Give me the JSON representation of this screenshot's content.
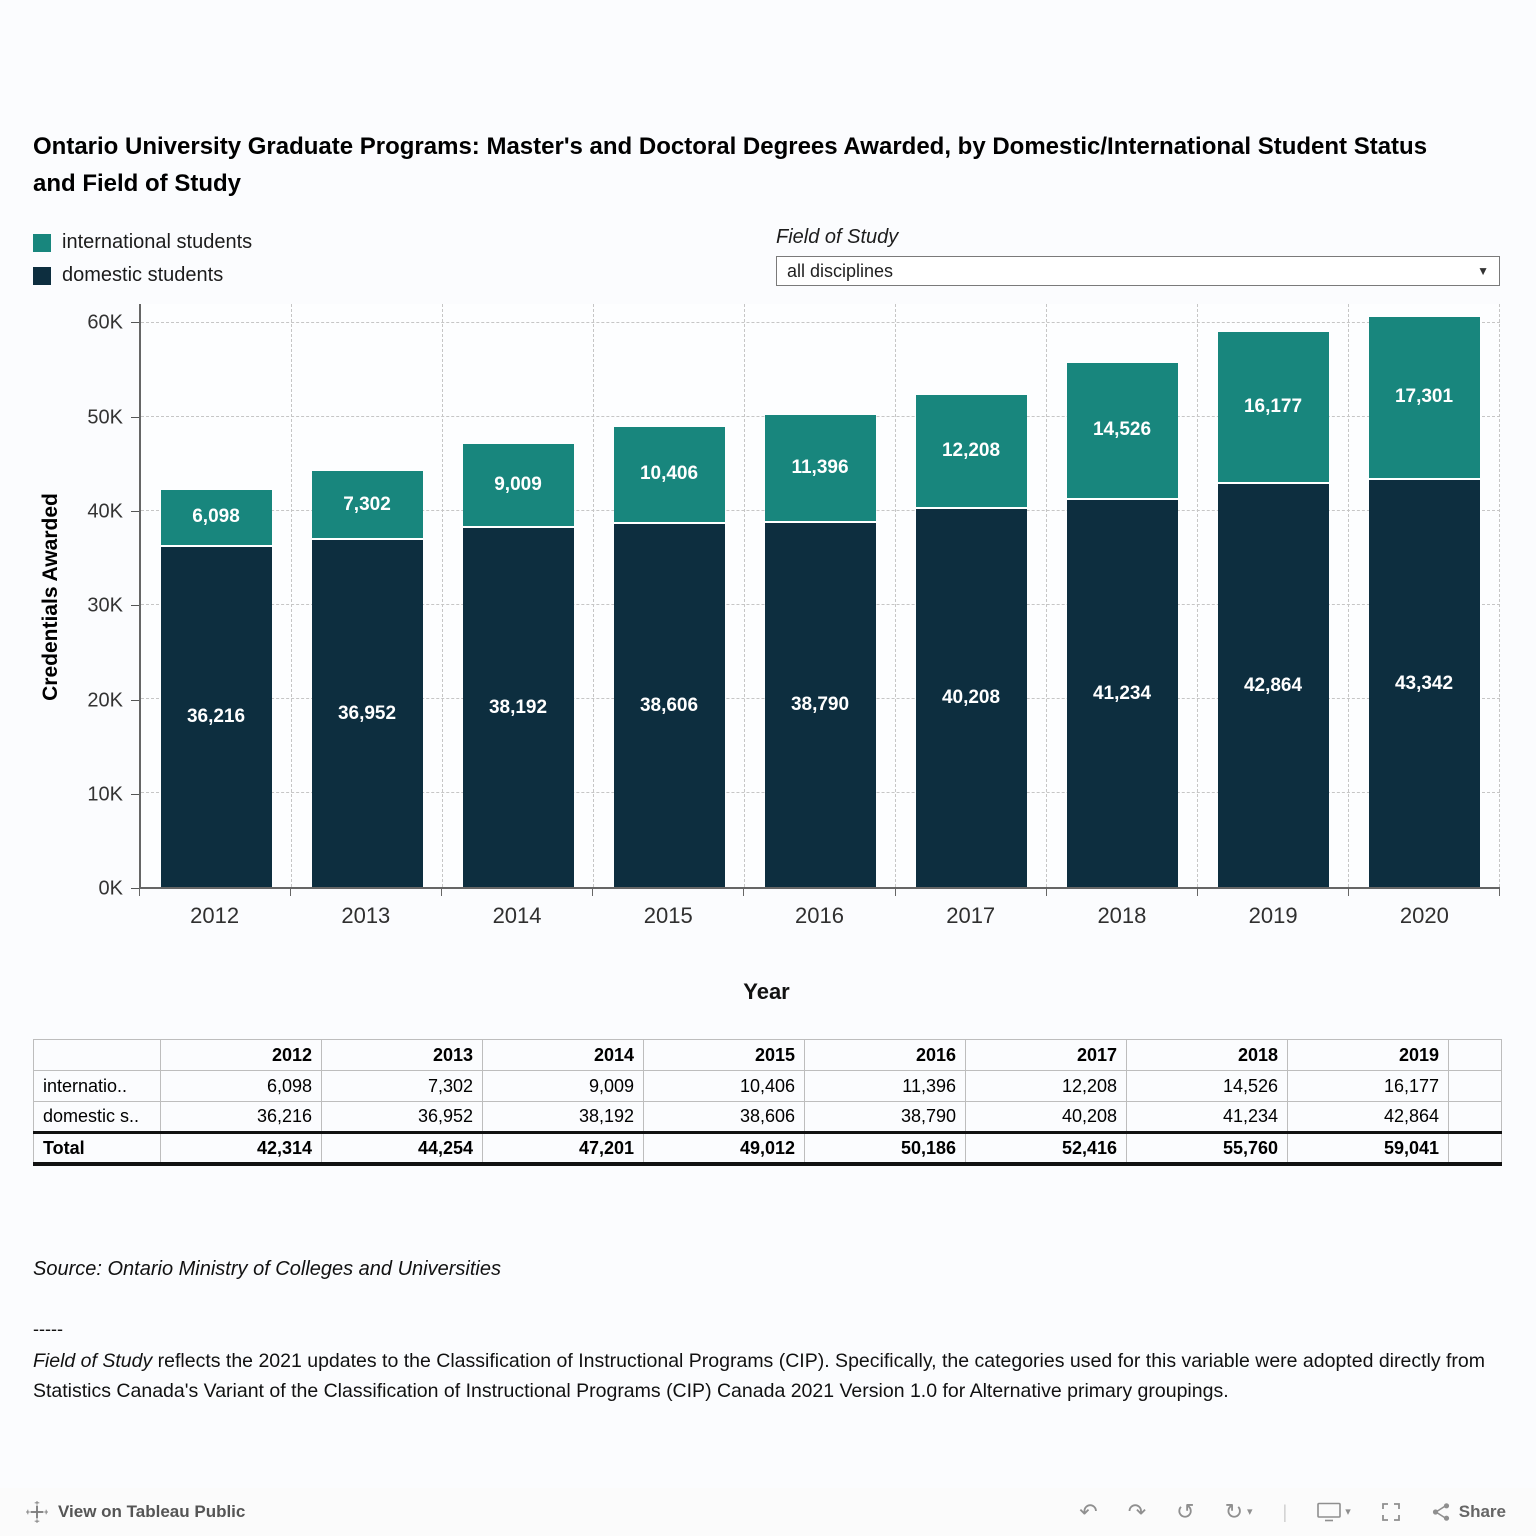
{
  "title": "Ontario University Graduate Programs: Master's and Doctoral Degrees Awarded, by Domestic/International Student Status and Field of Study",
  "legend": {
    "items": [
      {
        "label": "international students",
        "color": "#18867d"
      },
      {
        "label": "domestic students",
        "color": "#0d2e3f"
      }
    ]
  },
  "filter": {
    "label": "Field of Study",
    "value": "all disciplines",
    "caret": "▼"
  },
  "chart_data": {
    "type": "bar",
    "stacked": true,
    "title": "",
    "xlabel": "Year",
    "ylabel": "Credentials Awarded",
    "ylim": [
      0,
      62000
    ],
    "grid": "dashed horizontal and vertical",
    "legend_position": "top-left",
    "categories": [
      "2012",
      "2013",
      "2014",
      "2015",
      "2016",
      "2017",
      "2018",
      "2019",
      "2020"
    ],
    "yticks": [
      "0K",
      "10K",
      "20K",
      "30K",
      "40K",
      "50K",
      "60K"
    ],
    "ytick_values": [
      0,
      10000,
      20000,
      30000,
      40000,
      50000,
      60000
    ],
    "series": [
      {
        "name": "international students",
        "color": "#18867d",
        "values": [
          6098,
          7302,
          9009,
          10406,
          11396,
          12208,
          14526,
          16177,
          17301
        ],
        "value_labels": [
          "6,098",
          "7,302",
          "9,009",
          "10,406",
          "11,396",
          "12,208",
          "14,526",
          "16,177",
          "17,301"
        ]
      },
      {
        "name": "domestic students",
        "color": "#0d2e3f",
        "values": [
          36216,
          36952,
          38192,
          38606,
          38790,
          40208,
          41234,
          42864,
          43342
        ],
        "value_labels": [
          "36,216",
          "36,952",
          "38,192",
          "38,606",
          "38,790",
          "40,208",
          "41,234",
          "42,864",
          "43,342"
        ]
      }
    ]
  },
  "table": {
    "header": [
      "",
      "2012",
      "2013",
      "2014",
      "2015",
      "2016",
      "2017",
      "2018",
      "2019",
      ""
    ],
    "rows": [
      {
        "label": "internatio..",
        "bold": false,
        "values": [
          "6,098",
          "7,302",
          "9,009",
          "10,406",
          "11,396",
          "12,208",
          "14,526",
          "16,177",
          ""
        ]
      },
      {
        "label": "domestic s..",
        "bold": false,
        "values": [
          "36,216",
          "36,952",
          "38,192",
          "38,606",
          "38,790",
          "40,208",
          "41,234",
          "42,864",
          ""
        ]
      },
      {
        "label": "Total",
        "bold": true,
        "values": [
          "42,314",
          "44,254",
          "47,201",
          "49,012",
          "50,186",
          "52,416",
          "55,760",
          "59,041",
          ""
        ]
      }
    ]
  },
  "notes": {
    "source": "Source: Ontario Ministry of Colleges and Universities",
    "separator": "-----",
    "footnote_italic": "Field of Study",
    "footnote_rest": " reflects the 2021 updates to the Classification of Instructional Programs (CIP). Specifically, the categories used for this variable were adopted directly from Statistics Canada's Variant of the Classification of Instructional Programs (CIP) Canada 2021 Version 1.0 for Alternative primary groupings."
  },
  "toolbar": {
    "view_label": "View on Tableau Public",
    "share_label": "Share",
    "icons": {
      "undo": "↶",
      "redo": "↷",
      "revert": "↺",
      "refresh": "↻",
      "caret": "▾",
      "separator": "|"
    }
  }
}
